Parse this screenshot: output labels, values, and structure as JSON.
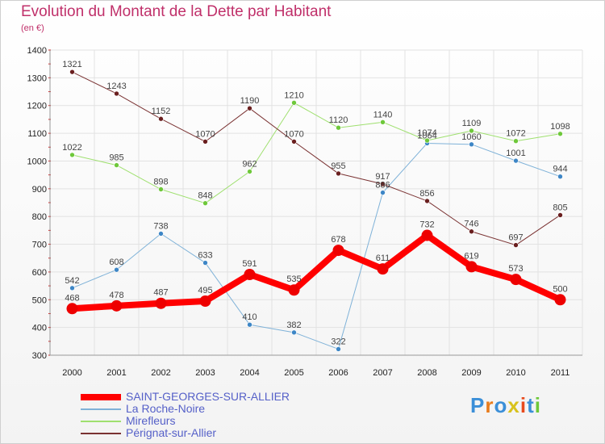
{
  "chart_data": {
    "type": "line",
    "title": "Evolution du Montant de la Dette par Habitant",
    "subtitle": "(en €)",
    "x": [
      "2000",
      "2001",
      "2002",
      "2003",
      "2004",
      "2005",
      "2006",
      "2007",
      "2008",
      "2009",
      "2010",
      "2011"
    ],
    "ylim": [
      300,
      1400
    ],
    "yticks": [
      300,
      400,
      500,
      600,
      700,
      800,
      900,
      1000,
      1100,
      1200,
      1300,
      1400
    ],
    "grid": true,
    "legend_position": "bottom-left",
    "series": [
      {
        "name": "SAINT-GEORGES-SUR-ALLIER",
        "color": "#ff0000",
        "marker": "#ee0000",
        "width": 8,
        "values": [
          468,
          478,
          487,
          495,
          591,
          535,
          678,
          611,
          732,
          619,
          573,
          500
        ]
      },
      {
        "name": "La Roche-Noire",
        "color": "#7fb2d8",
        "marker": "#3d86c6",
        "width": 1,
        "values": [
          542,
          608,
          738,
          633,
          410,
          382,
          322,
          886,
          1064,
          1060,
          1001,
          944
        ]
      },
      {
        "name": "Mirefleurs",
        "color": "#9fe06f",
        "marker": "#6ec83a",
        "width": 1,
        "values": [
          1022,
          985,
          898,
          848,
          962,
          1210,
          1120,
          1140,
          1074,
          1109,
          1072,
          1098
        ]
      },
      {
        "name": "Pérignat-sur-Allier",
        "color": "#7a3232",
        "marker": "#6a1f1f",
        "width": 1,
        "values": [
          1321,
          1243,
          1152,
          1070,
          1190,
          1070,
          955,
          917,
          856,
          746,
          697,
          805
        ]
      }
    ]
  },
  "logo": {
    "text": "Proxiti",
    "colors": [
      "#3b8fd8",
      "#e87c1c",
      "#3b8fd8",
      "#d8c21c",
      "#e84a1c",
      "#3b8fd8",
      "#6ec83a"
    ]
  }
}
